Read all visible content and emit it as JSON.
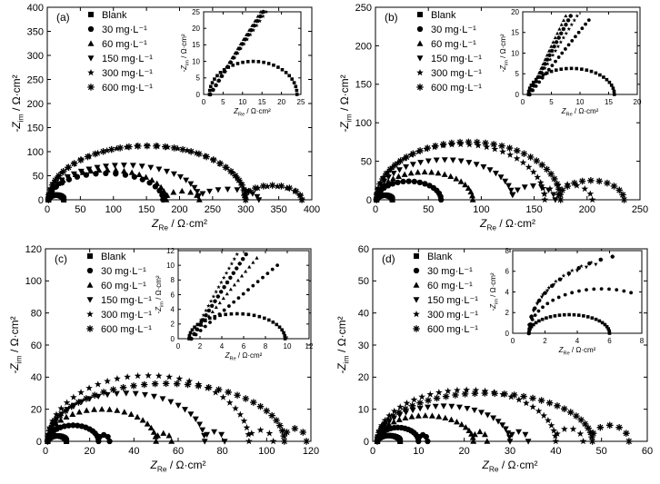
{
  "figure": {
    "legend_entries": [
      "Blank",
      "30 mg·L⁻¹",
      "60 mg·L⁻¹",
      "150 mg·L⁻¹",
      "300 mg·L⁻¹",
      "600 mg·L⁻¹"
    ],
    "marker_shapes": [
      "square",
      "circle",
      "triangle-up",
      "triangle-down",
      "star",
      "asterisk"
    ],
    "x_label": {
      "main": "Z",
      "sub": "Re",
      "unit": " / Ω·cm²"
    },
    "y_label": {
      "prefix": "-Z",
      "sub": "im",
      "unit": " / Ω·cm²"
    }
  },
  "chart_data": [
    {
      "type": "scatter",
      "panel_label": "(a)",
      "xlim": [
        0,
        400
      ],
      "ylim": [
        0,
        400
      ],
      "xticks": [
        0,
        50,
        100,
        150,
        200,
        250,
        300,
        350,
        400
      ],
      "yticks": [
        0,
        50,
        100,
        150,
        200,
        250,
        300,
        350,
        400
      ],
      "series": [
        {
          "name": "Blank",
          "marker": "square",
          "x_start": 1.5,
          "x_end": 25,
          "peak": 10
        },
        {
          "name": "30 mg·L⁻¹",
          "marker": "circle",
          "x_start": 2,
          "x_end": 175,
          "peak": 55,
          "tail_end": 175,
          "tail_peak": 0
        },
        {
          "name": "60 mg·L⁻¹",
          "marker": "triangle-up",
          "x_start": 2,
          "x_end": 180,
          "peak": 62,
          "tail_end": 230,
          "tail_peak": 18
        },
        {
          "name": "150 mg·L⁻¹",
          "marker": "triangle-down",
          "x_start": 2,
          "x_end": 230,
          "peak": 72,
          "tail_end": 320,
          "tail_peak": 22
        },
        {
          "name": "300 mg·L⁻¹",
          "marker": "star",
          "x_start": 2,
          "x_end": 300,
          "peak": 112,
          "tail_end": 385,
          "tail_peak": 28
        },
        {
          "name": "600 mg·L⁻¹",
          "marker": "asterisk",
          "x_start": 2,
          "x_end": 300,
          "peak": 112,
          "tail_end": 385,
          "tail_peak": 30
        }
      ],
      "inset": {
        "xlim": [
          0,
          25
        ],
        "ylim": [
          0,
          25
        ],
        "xticks": [
          0,
          5,
          10,
          15,
          20,
          25
        ],
        "yticks": [
          0,
          5,
          10,
          15,
          20,
          25
        ],
        "blank": {
          "x_start": 1.5,
          "x_end": 24,
          "peak": 10
        },
        "lines": [
          {
            "slope": 1.8,
            "end_y": 25
          },
          {
            "slope": 1.9,
            "end_y": 25
          },
          {
            "slope": 2.0,
            "end_y": 25
          }
        ]
      }
    },
    {
      "type": "scatter",
      "panel_label": "(b)",
      "xlim": [
        0,
        250
      ],
      "ylim": [
        0,
        250
      ],
      "xticks": [
        0,
        50,
        100,
        150,
        200,
        250
      ],
      "yticks": [
        0,
        50,
        100,
        150,
        200,
        250
      ],
      "series": [
        {
          "name": "Blank",
          "marker": "square",
          "x_start": 1,
          "x_end": 16,
          "peak": 6
        },
        {
          "name": "30 mg·L⁻¹",
          "marker": "circle",
          "x_start": 1,
          "x_end": 62,
          "peak": 24
        },
        {
          "name": "60 mg·L⁻¹",
          "marker": "triangle-up",
          "x_start": 1,
          "x_end": 92,
          "peak": 36
        },
        {
          "name": "150 mg·L⁻¹",
          "marker": "triangle-down",
          "x_start": 1,
          "x_end": 130,
          "peak": 52,
          "tail_end": 170,
          "tail_peak": 18
        },
        {
          "name": "300 mg·L⁻¹",
          "marker": "star",
          "x_start": 1,
          "x_end": 160,
          "peak": 72,
          "tail_end": 205,
          "tail_peak": 20
        },
        {
          "name": "600 mg·L⁻¹",
          "marker": "asterisk",
          "x_start": 1,
          "x_end": 175,
          "peak": 75,
          "tail_end": 235,
          "tail_peak": 25
        }
      ],
      "inset": {
        "xlim": [
          0,
          20
        ],
        "ylim": [
          0,
          20
        ],
        "xticks": [
          0,
          5,
          10,
          15,
          20
        ],
        "yticks": [
          0,
          5,
          10,
          15,
          20
        ],
        "blank": {
          "x_start": 1,
          "x_end": 16,
          "peak": 6.3
        },
        "lines": [
          {
            "slope": 2.4,
            "end_y": 19
          },
          {
            "slope": 2.8,
            "end_y": 19
          },
          {
            "slope": 3.2,
            "end_y": 19
          },
          {
            "slope": 1.8,
            "end_y": 18
          }
        ]
      }
    },
    {
      "type": "scatter",
      "panel_label": "(c)",
      "xlim": [
        0,
        120
      ],
      "ylim": [
        0,
        120
      ],
      "xticks": [
        0,
        20,
        40,
        60,
        80,
        100,
        120
      ],
      "yticks": [
        0,
        20,
        40,
        60,
        80,
        100,
        120
      ],
      "series": [
        {
          "name": "Blank",
          "marker": "square",
          "x_start": 1,
          "x_end": 9.5,
          "peak": 3.4
        },
        {
          "name": "30 mg·L⁻¹",
          "marker": "circle",
          "x_start": 1,
          "x_end": 24,
          "peak": 10,
          "tail_end": 29,
          "tail_peak": 4
        },
        {
          "name": "60 mg·L⁻¹",
          "marker": "triangle-up",
          "x_start": 1,
          "x_end": 50,
          "peak": 20,
          "tail_end": 57,
          "tail_peak": 5
        },
        {
          "name": "150 mg·L⁻¹",
          "marker": "triangle-down",
          "x_start": 1,
          "x_end": 72,
          "peak": 30,
          "tail_end": 81,
          "tail_peak": 6
        },
        {
          "name": "300 mg·L⁻¹",
          "marker": "star",
          "x_start": 1,
          "x_end": 92,
          "peak": 41,
          "tail_end": 103,
          "tail_peak": 7
        },
        {
          "name": "600 mg·L⁻¹",
          "marker": "asterisk",
          "x_start": 1,
          "x_end": 108,
          "peak": 36,
          "tail_end": 118,
          "tail_peak": 8
        }
      ],
      "inset": {
        "xlim": [
          0,
          12
        ],
        "ylim": [
          0,
          12
        ],
        "xticks": [
          0,
          2,
          4,
          6,
          8,
          10,
          12
        ],
        "yticks": [
          0,
          2,
          4,
          6,
          8,
          10,
          12
        ],
        "blank": {
          "x_start": 1,
          "x_end": 9.8,
          "peak": 3.4
        },
        "lines": [
          {
            "slope": 2.9,
            "end_y": 11.5
          },
          {
            "slope": 2.4,
            "end_y": 11.5
          },
          {
            "slope": 1.9,
            "end_y": 11
          },
          {
            "slope": 1.3,
            "end_y": 10
          }
        ]
      }
    },
    {
      "type": "scatter",
      "panel_label": "(d)",
      "xlim": [
        0,
        60
      ],
      "ylim": [
        0,
        60
      ],
      "xticks": [
        0,
        10,
        20,
        30,
        40,
        50,
        60
      ],
      "yticks": [
        0,
        10,
        20,
        30,
        40,
        50,
        60
      ],
      "series": [
        {
          "name": "Blank",
          "marker": "square",
          "x_start": 1,
          "x_end": 6,
          "peak": 1.8
        },
        {
          "name": "30 mg·L⁻¹",
          "marker": "circle",
          "x_start": 1,
          "x_end": 10,
          "peak": 4.3,
          "tail_end": 12,
          "tail_peak": 2
        },
        {
          "name": "60 mg·L⁻¹",
          "marker": "triangle-up",
          "x_start": 1,
          "x_end": 22,
          "peak": 8,
          "tail_end": 25,
          "tail_peak": 3
        },
        {
          "name": "150 mg·L⁻¹",
          "marker": "triangle-down",
          "x_start": 1,
          "x_end": 30,
          "peak": 11,
          "tail_end": 34,
          "tail_peak": 3
        },
        {
          "name": "300 mg·L⁻¹",
          "marker": "star",
          "x_start": 1,
          "x_end": 40,
          "peak": 16,
          "tail_end": 46,
          "tail_peak": 4
        },
        {
          "name": "600 mg·L⁻¹",
          "marker": "asterisk",
          "x_start": 1,
          "x_end": 48,
          "peak": 15,
          "tail_end": 56,
          "tail_peak": 5
        }
      ],
      "inset": {
        "xlim": [
          0,
          8
        ],
        "ylim": [
          0,
          8
        ],
        "xticks": [
          0,
          2,
          4,
          6,
          8
        ],
        "yticks": [
          0,
          2,
          4,
          6,
          8
        ],
        "blank": {
          "x_start": 1,
          "x_end": 6,
          "peak": 1.8
        },
        "arcs": [
          {
            "x_start": 1,
            "x_end": 10,
            "peak": 4.3,
            "limit_x": 7.6
          },
          {
            "x_start": 1,
            "x_end": 16,
            "peak": 7.8,
            "limit_x": 6.8
          },
          {
            "x_start": 1,
            "x_end": 14,
            "peak": 7.5,
            "limit_x": 6.0
          },
          {
            "x_start": 1,
            "x_end": 13,
            "peak": 7.0,
            "limit_x": 5.6
          }
        ]
      }
    }
  ]
}
